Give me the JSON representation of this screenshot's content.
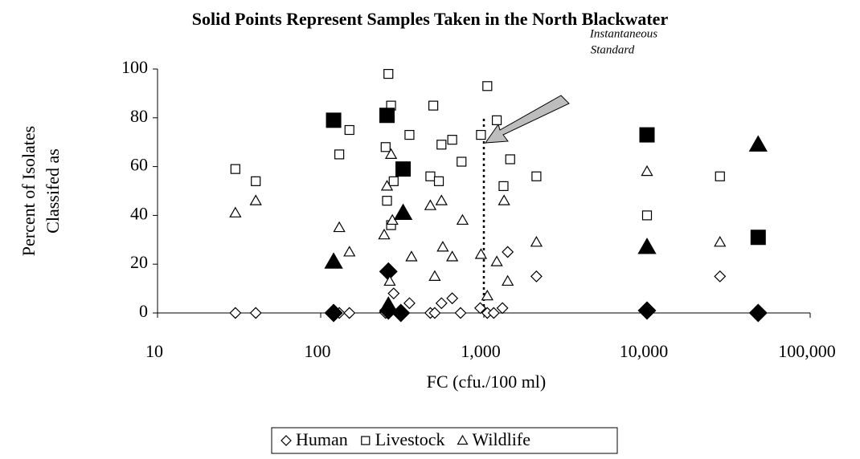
{
  "chart_data": {
    "type": "scatter",
    "title": "Solid Points Represent Samples Taken in the North Blackwater",
    "xlabel": "FC (cfu./100 ml)",
    "ylabel": [
      "Percent of Isolates",
      "Classifed as"
    ],
    "xscale": "log",
    "xlim": [
      10,
      100000
    ],
    "ylim": [
      0,
      100
    ],
    "xticks": [
      10,
      100,
      {
        "value": 1000,
        "label": "1,000"
      },
      {
        "value": 10000,
        "label": "10,000"
      },
      {
        "value": 100000,
        "label": "100,000"
      }
    ],
    "yticks": [
      0,
      20,
      40,
      60,
      80,
      100
    ],
    "grid": false,
    "legend": "bottom",
    "annotation": {
      "text": [
        "Instantaneous",
        "Standard"
      ],
      "x": 1000
    },
    "series": [
      {
        "name": "Human",
        "marker": "diamond",
        "color": "#000000",
        "x": [
          30,
          40,
          130,
          150,
          250,
          280,
          350,
          470,
          500,
          550,
          640,
          720,
          950,
          1050,
          1150,
          1300,
          1400,
          2100,
          28000,
          120,
          260,
          260,
          310,
          10000,
          48000
        ],
        "values": [
          0,
          0,
          0,
          0,
          0,
          8,
          4,
          0,
          0,
          4,
          6,
          0,
          2,
          0,
          0,
          2,
          25,
          15,
          15,
          0,
          17,
          1,
          0,
          1,
          0
        ],
        "filled": [
          false,
          false,
          false,
          false,
          false,
          false,
          false,
          false,
          false,
          false,
          false,
          false,
          false,
          false,
          false,
          false,
          false,
          false,
          false,
          true,
          true,
          true,
          true,
          true,
          true
        ]
      },
      {
        "name": "Livestock",
        "marker": "square",
        "color": "#000000",
        "x": [
          30,
          40,
          130,
          150,
          250,
          255,
          260,
          270,
          280,
          270,
          350,
          470,
          490,
          530,
          550,
          640,
          730,
          960,
          1050,
          1200,
          1320,
          1450,
          2100,
          10000,
          28000,
          120,
          255,
          320,
          10000,
          48000
        ],
        "values": [
          59,
          54,
          65,
          75,
          68,
          46,
          98,
          85,
          54,
          36,
          73,
          56,
          85,
          54,
          69,
          71,
          62,
          73,
          93,
          79,
          52,
          63,
          56,
          40,
          56,
          79,
          81,
          59,
          73,
          31
        ],
        "filled": [
          false,
          false,
          false,
          false,
          false,
          false,
          false,
          false,
          false,
          false,
          false,
          false,
          false,
          false,
          false,
          false,
          false,
          false,
          false,
          false,
          false,
          false,
          false,
          false,
          false,
          true,
          true,
          true,
          true,
          true
        ]
      },
      {
        "name": "Wildlife",
        "marker": "triangle",
        "color": "#000000",
        "x": [
          30,
          40,
          130,
          150,
          245,
          255,
          270,
          275,
          265,
          360,
          470,
          500,
          550,
          560,
          640,
          740,
          960,
          1050,
          1200,
          1330,
          1400,
          2100,
          10000,
          28000,
          120,
          260,
          320,
          10000,
          48000
        ],
        "values": [
          41,
          46,
          35,
          25,
          32,
          52,
          65,
          38,
          13,
          23,
          44,
          15,
          46,
          27,
          23,
          38,
          24,
          7,
          21,
          46,
          13,
          29,
          58,
          29,
          21,
          3,
          41,
          27,
          69
        ],
        "filled": [
          false,
          false,
          false,
          false,
          false,
          false,
          false,
          false,
          false,
          false,
          false,
          false,
          false,
          false,
          false,
          false,
          false,
          false,
          false,
          false,
          false,
          false,
          false,
          false,
          true,
          true,
          true,
          true,
          true
        ]
      }
    ]
  }
}
